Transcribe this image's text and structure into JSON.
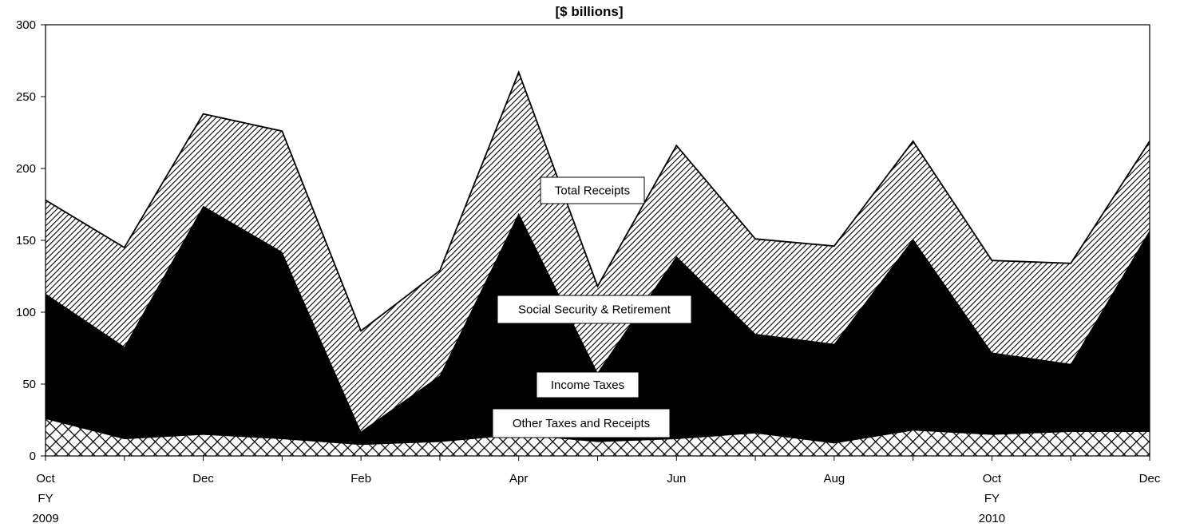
{
  "chart_data": {
    "type": "area",
    "title": "[$ billions]",
    "ylim": [
      0,
      300
    ],
    "yticks": [
      0,
      50,
      100,
      150,
      200,
      250,
      300
    ],
    "x": [
      "Oct 2009",
      "Nov 2009",
      "Dec 2009",
      "Jan 2010",
      "Feb 2010",
      "Mar 2010",
      "Apr 2010",
      "May 2010",
      "Jun 2010",
      "Jul 2010",
      "Aug 2010",
      "Sep 2010",
      "Oct 2010",
      "Nov 2010",
      "Dec 2010"
    ],
    "xtick_labels": [
      {
        "index": 0,
        "lines": [
          "Oct",
          "FY",
          "2009"
        ]
      },
      {
        "index": 2,
        "lines": [
          "Dec"
        ]
      },
      {
        "index": 4,
        "lines": [
          "Feb"
        ]
      },
      {
        "index": 6,
        "lines": [
          "Apr"
        ]
      },
      {
        "index": 8,
        "lines": [
          "Jun"
        ]
      },
      {
        "index": 10,
        "lines": [
          "Aug"
        ]
      },
      {
        "index": 12,
        "lines": [
          "Oct",
          "FY",
          "2010"
        ]
      },
      {
        "index": 14,
        "lines": [
          "Dec"
        ]
      }
    ],
    "series": [
      {
        "name": "Other Taxes and Receipts",
        "fill": "crosshatch",
        "values": [
          26,
          12,
          15,
          12,
          8,
          10,
          15,
          10,
          12,
          16,
          9,
          18,
          15,
          17,
          17
        ]
      },
      {
        "name": "Income Taxes",
        "fill": "solid-black",
        "values": [
          113,
          76,
          174,
          142,
          17,
          56,
          169,
          58,
          139,
          85,
          78,
          151,
          72,
          64,
          157
        ]
      },
      {
        "name": "Social Security & Retirement",
        "fill": "diagonal-stripes",
        "values": [
          178,
          145,
          238,
          226,
          87,
          129,
          267,
          118,
          216,
          151,
          146,
          219,
          136,
          134,
          219
        ]
      }
    ],
    "total_label": "Total Receipts",
    "cumulative": true,
    "grid": false,
    "legend": "inline labels"
  }
}
